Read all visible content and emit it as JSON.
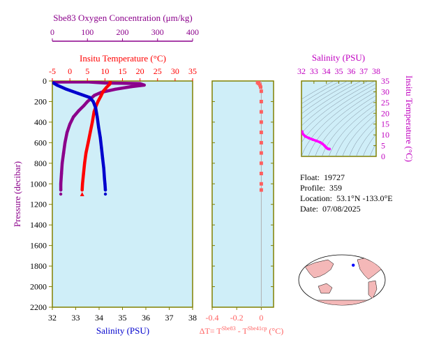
{
  "chart_data": [
    {
      "type": "line",
      "panel": "main-profile",
      "y_axis": {
        "label": "Pressure (decibar)",
        "range": [
          0,
          2200
        ],
        "ticks": [
          0,
          200,
          400,
          600,
          800,
          1000,
          1200,
          1400,
          1600,
          1800,
          2000,
          2200
        ],
        "inverted": true
      },
      "oxygen_axis": {
        "title": "Sbe83 Oxygen Concentration (μm/kg)",
        "range": [
          0,
          400
        ],
        "ticks": [
          0,
          100,
          200,
          300,
          400
        ],
        "color": "#8b008b"
      },
      "temperature_axis": {
        "title": "Insitu Temperature (°C)",
        "range": [
          -5,
          35
        ],
        "ticks": [
          -5,
          0,
          5,
          10,
          15,
          20,
          25,
          30,
          35
        ],
        "color": "#ff0000"
      },
      "salinity_axis": {
        "title": "Salinity (PSU)",
        "range": [
          32,
          38
        ],
        "ticks": [
          32,
          33,
          34,
          35,
          36,
          37,
          38
        ],
        "color": "#0000cd"
      },
      "series": [
        {
          "variable": "oxygen",
          "color": "#8b008b",
          "points": [
            [
              5,
              10
            ],
            [
              100,
              8
            ],
            [
              150,
              20
            ],
            [
              200,
              22
            ],
            [
              250,
              26
            ],
            [
              262,
              40
            ],
            [
              225,
              55
            ],
            [
              180,
              80
            ],
            [
              140,
              110
            ],
            [
              120,
              140
            ],
            [
              110,
              170
            ],
            [
              100,
              200
            ],
            [
              90,
              240
            ],
            [
              75,
              290
            ],
            [
              60,
              350
            ],
            [
              50,
              420
            ],
            [
              42,
              500
            ],
            [
              36,
              600
            ],
            [
              32,
              700
            ],
            [
              28,
              800
            ],
            [
              26,
              900
            ],
            [
              24,
              1000
            ],
            [
              24,
              1060
            ]
          ],
          "end_marker": [
            24,
            1100
          ]
        },
        {
          "variable": "temperature",
          "color": "#ff0000",
          "points": [
            [
              11.5,
              8
            ],
            [
              11.4,
              30
            ],
            [
              10.5,
              60
            ],
            [
              9.5,
              100
            ],
            [
              8.8,
              150
            ],
            [
              8.0,
              200
            ],
            [
              7.4,
              250
            ],
            [
              6.9,
              300
            ],
            [
              6.4,
              400
            ],
            [
              5.8,
              500
            ],
            [
              5.2,
              600
            ],
            [
              4.6,
              700
            ],
            [
              4.2,
              800
            ],
            [
              3.9,
              900
            ],
            [
              3.6,
              1000
            ],
            [
              3.5,
              1060
            ]
          ],
          "end_marker": [
            3.5,
            1100
          ]
        },
        {
          "variable": "salinity",
          "color": "#0000cd",
          "points": [
            [
              32.05,
              20
            ],
            [
              32.2,
              40
            ],
            [
              32.6,
              80
            ],
            [
              33.1,
              120
            ],
            [
              33.6,
              160
            ],
            [
              33.75,
              200
            ],
            [
              33.85,
              260
            ],
            [
              33.92,
              350
            ],
            [
              33.98,
              450
            ],
            [
              34.05,
              550
            ],
            [
              34.1,
              650
            ],
            [
              34.15,
              750
            ],
            [
              34.2,
              850
            ],
            [
              34.23,
              950
            ],
            [
              34.25,
              1000
            ],
            [
              34.27,
              1060
            ]
          ],
          "end_marker": [
            34.27,
            1100
          ]
        }
      ]
    },
    {
      "type": "scatter",
      "panel": "temperature-difference",
      "x_axis": {
        "label": "ΔT= T",
        "label_sup1": "Sbe83",
        "label_mid": " - T",
        "label_sup2": "Sbe41cp",
        "label_end": " (°C)",
        "range": [
          -0.4,
          0.1
        ],
        "ticks": [
          -0.4,
          -0.2,
          0.0
        ],
        "color": "#ff6060"
      },
      "y_range": [
        0,
        2200
      ],
      "series": [
        {
          "name": "",
          "color": "#ff6060",
          "points": [
            [
              -0.02,
              5
            ],
            [
              -0.03,
              15
            ],
            [
              -0.02,
              25
            ],
            [
              -0.01,
              40
            ],
            [
              -0.005,
              60
            ],
            [
              0.0,
              100
            ],
            [
              0.0,
              200
            ],
            [
              0.0,
              300
            ],
            [
              0.0,
              400
            ],
            [
              0.0,
              500
            ],
            [
              0.0,
              600
            ],
            [
              0.0,
              700
            ],
            [
              0.0,
              800
            ],
            [
              0.0,
              900
            ],
            [
              0.0,
              1000
            ],
            [
              0.0,
              1060
            ]
          ]
        }
      ]
    },
    {
      "type": "scatter",
      "panel": "ts-diagram",
      "x_axis": {
        "label": "Salinity (PSU)",
        "range": [
          32,
          38
        ],
        "ticks": [
          32,
          33,
          34,
          35,
          36,
          37,
          38
        ],
        "color": "#c000c0"
      },
      "y_axis": {
        "label": "Insitu Temperature (°C)",
        "range": [
          0,
          35
        ],
        "ticks": [
          0,
          5,
          10,
          15,
          20,
          25,
          30,
          35
        ],
        "color": "#c000c0"
      },
      "series": [
        {
          "name": "",
          "color": "#ff00ff",
          "points": [
            [
              32.05,
              11.5
            ],
            [
              32.1,
              10.5
            ],
            [
              32.3,
              9.3
            ],
            [
              32.6,
              8.5
            ],
            [
              32.9,
              7.8
            ],
            [
              33.2,
              7.2
            ],
            [
              33.5,
              6.5
            ],
            [
              33.7,
              5.8
            ],
            [
              33.85,
              5.0
            ],
            [
              33.95,
              4.3
            ],
            [
              34.05,
              3.8
            ],
            [
              34.15,
              3.5
            ],
            [
              34.25,
              3.4
            ]
          ]
        }
      ]
    }
  ],
  "info": {
    "float_label": "Float:",
    "float_value": "19727",
    "profile_label": "Profile:",
    "profile_value": "359",
    "location_label": "Location:",
    "location_value": "53.1°N  -133.0°E",
    "date_label": "Date:",
    "date_value": "07/08/2025"
  },
  "map": {
    "marker_lat": 53.1,
    "marker_lon": -133.0,
    "ocean_color": "#ffffff",
    "land_color": "#f4b8b8",
    "marker_color": "#0000ff"
  },
  "colors": {
    "panel_bg": "#cfeef8",
    "frame": "#808000"
  }
}
